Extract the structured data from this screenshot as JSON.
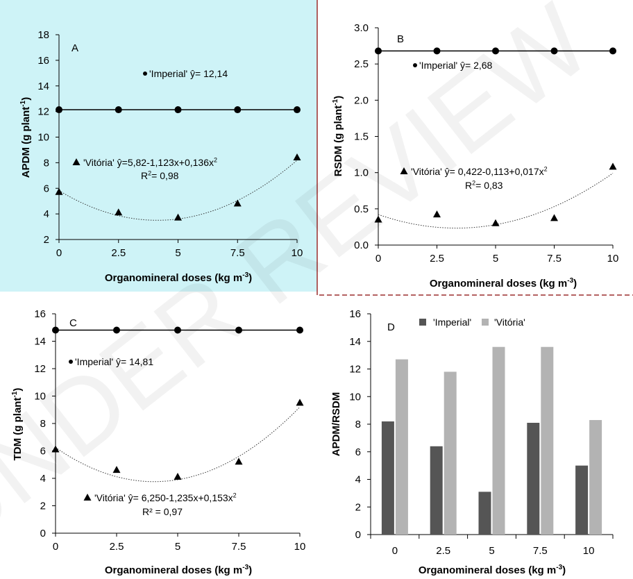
{
  "watermark": "UNDER REVIEW",
  "colors": {
    "panel_a_background": "#cef3f7",
    "imperial": "#555555",
    "vitoria": "#b3b3b3",
    "divider": "#9b2d2d",
    "markers": "#000000"
  },
  "chart_data": [
    {
      "panel": "A",
      "type": "scatter",
      "ylabel": "APDM (g plant-1)",
      "xlabel": "Organomineral doses (kg m-3)",
      "x": [
        0,
        2.5,
        5,
        7.5,
        10
      ],
      "x_tick_labels": [
        "0",
        "2.5",
        "5",
        "7.5",
        "10"
      ],
      "ylim": [
        2,
        18
      ],
      "y_ticks": [
        2,
        4,
        6,
        8,
        10,
        12,
        14,
        16,
        18
      ],
      "y_tick_labels": [
        "2",
        "4",
        "6",
        "8",
        "10",
        "12",
        "14",
        "16",
        "18"
      ],
      "series": [
        {
          "name": "'Imperial'",
          "marker": "circle",
          "values": [
            12.14,
            12.14,
            12.14,
            12.14,
            12.14
          ],
          "fit": "linear",
          "equation": "'Imperial' ŷ= 12,14"
        },
        {
          "name": "'Vitória'",
          "marker": "triangle",
          "values": [
            5.7,
            4.1,
            3.7,
            4.8,
            8.4
          ],
          "fit": "quadratic",
          "coef": [
            5.82,
            -1.123,
            0.136
          ],
          "equation": "'Vitória' ŷ=5,82-1,123x+0,136x2",
          "r2": "R2= 0,98"
        }
      ]
    },
    {
      "panel": "B",
      "type": "scatter",
      "ylabel": "RSDM (g plant-1)",
      "xlabel": "Organomineral doses (kg m-3)",
      "x": [
        0,
        2.5,
        5,
        7.5,
        10
      ],
      "x_tick_labels": [
        "0",
        "2.5",
        "5",
        "7.5",
        "10"
      ],
      "ylim": [
        0,
        3
      ],
      "y_ticks": [
        0,
        0.5,
        1,
        1.5,
        2,
        2.5,
        3
      ],
      "y_tick_labels": [
        "0.0",
        "0.5",
        "1.0",
        "1.5",
        "2.0",
        "2.5",
        "3.0"
      ],
      "series": [
        {
          "name": "'Imperial'",
          "marker": "circle",
          "values": [
            2.68,
            2.68,
            2.68,
            2.68,
            2.68
          ],
          "fit": "linear",
          "equation": "'Imperial' ŷ= 2,68"
        },
        {
          "name": "'Vitória'",
          "marker": "triangle",
          "values": [
            0.35,
            0.42,
            0.3,
            0.37,
            1.08
          ],
          "fit": "quadratic",
          "coef": [
            0.422,
            -0.113,
            0.017
          ],
          "equation": "'Vitória' ŷ= 0,422-0,113+0,017x2",
          "r2": "R2= 0,83"
        }
      ]
    },
    {
      "panel": "C",
      "type": "scatter",
      "ylabel": "TDM (g plant-1)",
      "xlabel": "Organomineral doses (kg m-3)",
      "x": [
        0,
        2.5,
        5,
        7.5,
        10
      ],
      "x_tick_labels": [
        "0",
        "2.5",
        "5",
        "7.5",
        "10"
      ],
      "ylim": [
        0,
        16
      ],
      "y_ticks": [
        0,
        2,
        4,
        6,
        8,
        10,
        12,
        14,
        16
      ],
      "y_tick_labels": [
        "0",
        "2",
        "4",
        "6",
        "8",
        "10",
        "12",
        "14",
        "16"
      ],
      "series": [
        {
          "name": "'Imperial'",
          "marker": "circle",
          "values": [
            14.81,
            14.81,
            14.81,
            14.81,
            14.81
          ],
          "fit": "linear",
          "equation": "'Imperial' ŷ= 14,81"
        },
        {
          "name": "'Vitória'",
          "marker": "triangle",
          "values": [
            6.1,
            4.6,
            4.1,
            5.2,
            9.5
          ],
          "fit": "quadratic",
          "coef": [
            6.25,
            -1.235,
            0.153
          ],
          "equation": "'Vitória' ŷ= 6,250-1,235x+0,153x2",
          "r2": "R² = 0,97"
        }
      ]
    },
    {
      "panel": "D",
      "type": "bar",
      "ylabel": "APDM/RSDM",
      "xlabel": "Organomineral doses (kg m-3)",
      "categories": [
        "0",
        "2.5",
        "5",
        "7.5",
        "10"
      ],
      "ylim": [
        0,
        16
      ],
      "y_ticks": [
        0,
        2,
        4,
        6,
        8,
        10,
        12,
        14,
        16
      ],
      "y_tick_labels": [
        "0",
        "2",
        "4",
        "6",
        "8",
        "10",
        "12",
        "14",
        "16"
      ],
      "legend": "top",
      "series": [
        {
          "name": "'Imperial'",
          "values": [
            8.2,
            6.4,
            3.1,
            8.1,
            5.0
          ]
        },
        {
          "name": "'Vitória'",
          "values": [
            12.7,
            11.8,
            13.6,
            13.6,
            8.3
          ]
        }
      ]
    }
  ]
}
